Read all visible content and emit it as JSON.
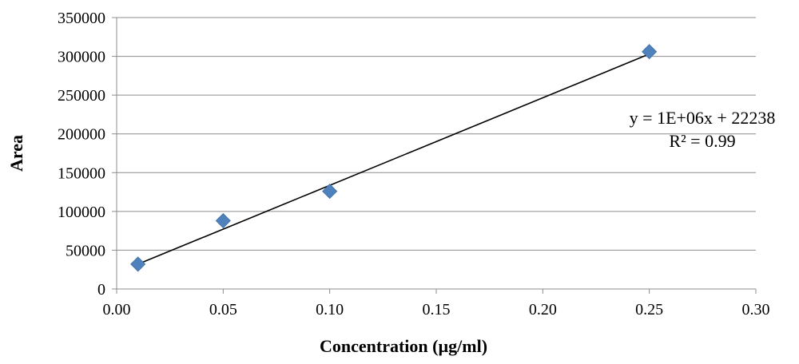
{
  "chart_data": {
    "type": "scatter",
    "title": "",
    "xlabel": "Concentration (µg/ml)",
    "ylabel": "Area",
    "xlim": [
      0,
      0.3
    ],
    "ylim": [
      0,
      350000
    ],
    "x_ticks": [
      "0.00",
      "0.05",
      "0.10",
      "0.15",
      "0.20",
      "0.25",
      "0.30"
    ],
    "y_ticks": [
      "0",
      "50000",
      "100000",
      "150000",
      "200000",
      "250000",
      "300000",
      "350000"
    ],
    "grid": "horizontal",
    "series": [
      {
        "marker": "diamond",
        "color": "#4F81BD",
        "x": [
          0.01,
          0.05,
          0.1,
          0.25
        ],
        "y": [
          32000,
          88000,
          126000,
          306000
        ]
      }
    ],
    "trendline": {
      "type": "linear",
      "color": "#000000",
      "x_range": [
        0.01,
        0.25
      ],
      "y_range": [
        32000,
        303000
      ],
      "equation": "y = 1E+06x + 22238",
      "r_squared": "R² = 0.99"
    }
  }
}
